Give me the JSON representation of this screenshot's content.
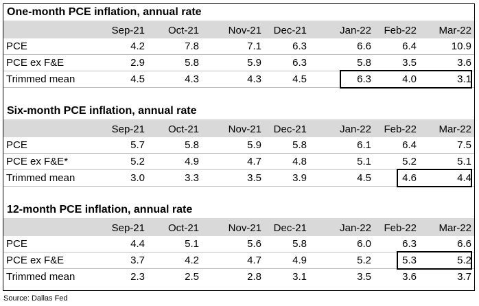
{
  "months": [
    "Sep-21",
    "Oct-21",
    "Nov-21",
    "Dec-21",
    "Jan-22",
    "Feb-22",
    "Mar-22"
  ],
  "sections": [
    {
      "title": "One-month PCE inflation, annual rate",
      "rows": [
        {
          "label": "PCE",
          "values": [
            "4.2",
            "7.8",
            "7.1",
            "6.3",
            "6.6",
            "6.4",
            "10.9"
          ]
        },
        {
          "label": "PCE ex F&E",
          "values": [
            "2.9",
            "5.8",
            "5.9",
            "6.3",
            "5.8",
            "3.5",
            "3.6"
          ]
        },
        {
          "label": "Trimmed mean",
          "values": [
            "4.5",
            "4.3",
            "4.3",
            "4.5",
            "6.3",
            "4.0",
            "3.1"
          ]
        }
      ]
    },
    {
      "title": "Six-month PCE inflation, annual rate",
      "rows": [
        {
          "label": "PCE",
          "values": [
            "5.7",
            "5.8",
            "5.9",
            "5.8",
            "6.1",
            "6.4",
            "7.5"
          ]
        },
        {
          "label": "PCE ex F&E*",
          "values": [
            "5.2",
            "4.9",
            "4.7",
            "4.8",
            "5.1",
            "5.2",
            "5.1"
          ]
        },
        {
          "label": "Trimmed mean",
          "values": [
            "3.0",
            "3.3",
            "3.5",
            "3.9",
            "4.5",
            "4.6",
            "4.4"
          ]
        }
      ]
    },
    {
      "title": "12-month PCE inflation, annual rate",
      "rows": [
        {
          "label": "PCE",
          "values": [
            "4.4",
            "5.1",
            "5.6",
            "5.8",
            "6.0",
            "6.3",
            "6.6"
          ]
        },
        {
          "label": "PCE ex F&E",
          "values": [
            "3.7",
            "4.2",
            "4.7",
            "4.9",
            "5.2",
            "5.3",
            "5.2"
          ]
        },
        {
          "label": "Trimmed mean",
          "values": [
            "2.3",
            "2.5",
            "2.8",
            "3.1",
            "3.5",
            "3.6",
            "3.7"
          ]
        }
      ]
    }
  ],
  "source": "Source: Dallas Fed"
}
